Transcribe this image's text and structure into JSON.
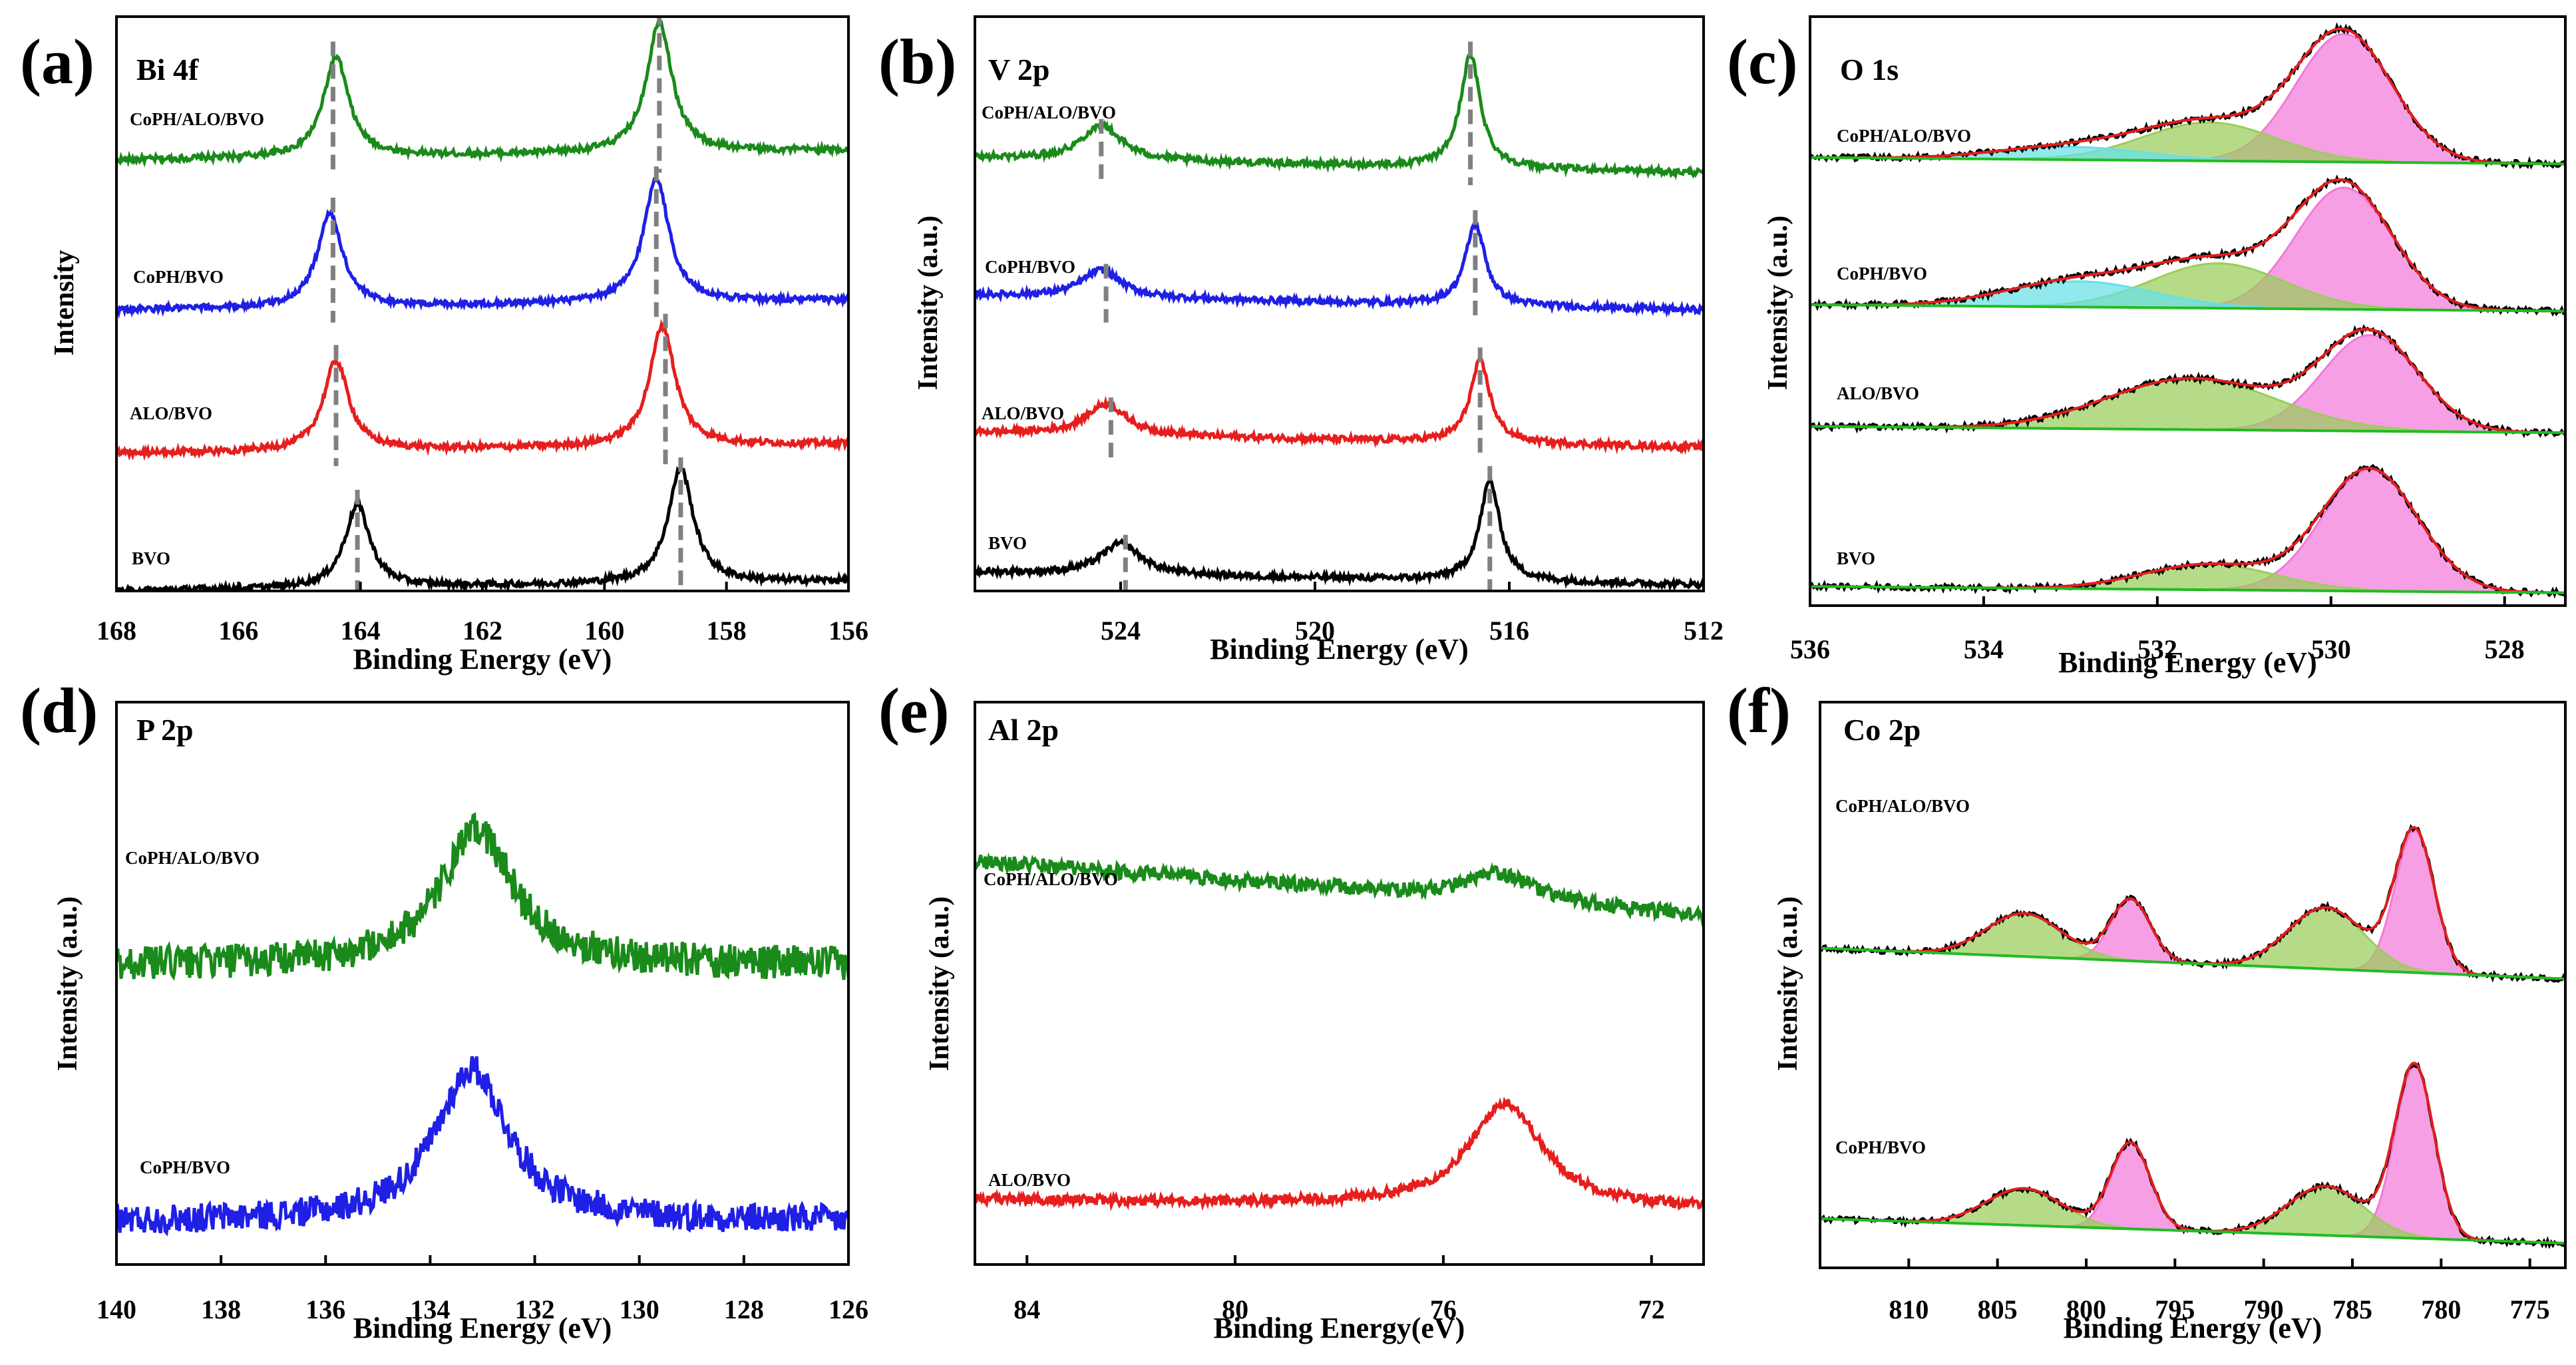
{
  "figure": {
    "panels": [
      {
        "id": "a",
        "label": "(a)",
        "element": "Bi 4f",
        "xlabel": "Binding Energy (eV)",
        "ylabel": "Intensity",
        "xticks": [
          "168",
          "166",
          "164",
          "162",
          "160",
          "158",
          "156"
        ],
        "samples": [
          "CoPH/ALO/BVO",
          "CoPH/BVO",
          "ALO/BVO",
          "BVO"
        ]
      },
      {
        "id": "b",
        "label": "(b)",
        "element": "V 2p",
        "xlabel": "Binding Energy (eV)",
        "ylabel": "Intensity (a.u.)",
        "xticks": [
          "524",
          "520",
          "516",
          "512"
        ],
        "samples": [
          "CoPH/ALO/BVO",
          "CoPH/BVO",
          "ALO/BVO",
          "BVO"
        ]
      },
      {
        "id": "c",
        "label": "(c)",
        "element": "O 1s",
        "xlabel": "Binding Energy (eV)",
        "ylabel": "Intensity (a.u.)",
        "xticks": [
          "536",
          "534",
          "532",
          "530",
          "528"
        ],
        "samples": [
          "CoPH/ALO/BVO",
          "CoPH/BVO",
          "ALO/BVO",
          "BVO"
        ]
      },
      {
        "id": "d",
        "label": "(d)",
        "element": "P 2p",
        "xlabel": "Binding Energy (eV)",
        "ylabel": "Intensity (a.u.)",
        "xticks": [
          "140",
          "138",
          "136",
          "134",
          "132",
          "130",
          "128",
          "126"
        ],
        "samples": [
          "CoPH/ALO/BVO",
          "CoPH/BVO"
        ]
      },
      {
        "id": "e",
        "label": "(e)",
        "element": "Al 2p",
        "xlabel": "Binding Energy(eV)",
        "ylabel": "Intensity (a.u.)",
        "xticks": [
          "84",
          "80",
          "76",
          "72"
        ],
        "samples": [
          "CoPH/ALO/BVO",
          "ALO/BVO"
        ]
      },
      {
        "id": "f",
        "label": "(f)",
        "element": "Co 2p",
        "xlabel": "Binding Energy (eV)",
        "ylabel": "Intensity (a.u.)",
        "xticks": [
          "810",
          "805",
          "800",
          "795",
          "790",
          "785",
          "780",
          "775"
        ],
        "samples": [
          "CoPH/ALO/BVO",
          "CoPH/BVO"
        ]
      }
    ]
  },
  "chart_data": [
    {
      "type": "line",
      "title": "Bi 4f",
      "xlabel": "Binding Energy (eV)",
      "ylabel": "Intensity",
      "xlim": [
        168,
        156
      ],
      "xreversed": true,
      "ylim": [
        0,
        4.6
      ],
      "series": [
        {
          "name": "CoPH/ALO/BVO",
          "color": "#1a8a1a",
          "offset": 3.45,
          "baseline": [
            0.0,
            0.08
          ],
          "peaks": [
            [
              164.4,
              0.8,
              0.5
            ],
            [
              159.1,
              1.05,
              0.5
            ]
          ]
        },
        {
          "name": "CoPH/BVO",
          "color": "#1f1fe6",
          "offset": 2.25,
          "baseline": [
            0.0,
            0.08
          ],
          "peaks": [
            [
              164.5,
              0.75,
              0.5
            ],
            [
              159.15,
              1.0,
              0.5
            ]
          ]
        },
        {
          "name": "ALO/BVO",
          "color": "#e61e1e",
          "offset": 1.1,
          "baseline": [
            0.0,
            0.08
          ],
          "peaks": [
            [
              164.4,
              0.72,
              0.5
            ],
            [
              159.05,
              0.97,
              0.5
            ]
          ]
        },
        {
          "name": "BVO",
          "color": "#000000",
          "offset": 0.0,
          "baseline": [
            0.0,
            0.08
          ],
          "peaks": [
            [
              164.05,
              0.66,
              0.5
            ],
            [
              158.75,
              0.92,
              0.5
            ]
          ]
        }
      ],
      "reference_lines": [
        164.45,
        164.45,
        164.4,
        164.05,
        159.1,
        159.15,
        159.0,
        158.75
      ]
    },
    {
      "type": "line",
      "title": "V 2p",
      "xlabel": "Binding Energy (eV)",
      "ylabel": "Intensity (a.u.)",
      "xlim": [
        527,
        512
      ],
      "xreversed": true,
      "ylim": [
        0,
        4.6
      ],
      "series": [
        {
          "name": "CoPH/ALO/BVO",
          "color": "#1a8a1a",
          "offset": 3.35,
          "baseline": [
            0.12,
            0.0
          ],
          "peaks": [
            [
              524.4,
              0.28,
              1.0
            ],
            [
              516.8,
              0.9,
              0.5
            ]
          ]
        },
        {
          "name": "CoPH/BVO",
          "color": "#1f1fe6",
          "offset": 2.25,
          "baseline": [
            0.12,
            0.0
          ],
          "peaks": [
            [
              524.4,
              0.22,
              1.0
            ],
            [
              516.7,
              0.65,
              0.5
            ]
          ]
        },
        {
          "name": "ALO/BVO",
          "color": "#e61e1e",
          "offset": 1.15,
          "baseline": [
            0.12,
            0.0
          ],
          "peaks": [
            [
              524.3,
              0.25,
              1.0
            ],
            [
              516.6,
              0.65,
              0.5
            ]
          ]
        },
        {
          "name": "BVO",
          "color": "#000000",
          "offset": 0.05,
          "baseline": [
            0.1,
            0.0
          ],
          "peaks": [
            [
              524.0,
              0.25,
              1.0
            ],
            [
              516.4,
              0.8,
              0.5
            ]
          ]
        }
      ],
      "reference_lines": [
        524.4,
        524.3,
        524.2,
        523.9,
        516.8,
        516.7,
        516.6,
        516.4
      ]
    },
    {
      "type": "area",
      "title": "O 1s",
      "xlabel": "Binding Energy (eV)",
      "ylabel": "Intensity (a.u.)",
      "xlim": [
        536,
        527.3
      ],
      "xreversed": true,
      "ylim": [
        0,
        4.6
      ],
      "series": [
        {
          "name": "CoPH/ALO/BVO",
          "offset": 3.45,
          "tilt": 0.1,
          "components": [
            {
              "center": 529.85,
              "height": 1.0,
              "fwhm": 1.3,
              "color": "#f27ad9"
            },
            {
              "center": 531.4,
              "height": 0.3,
              "fwhm": 1.8,
              "color": "#9acd5a"
            },
            {
              "center": 533.0,
              "height": 0.1,
              "fwhm": 2.0,
              "color": "#66e0e6"
            }
          ]
        },
        {
          "name": "CoPH/BVO",
          "offset": 2.3,
          "tilt": 0.1,
          "components": [
            {
              "center": 529.85,
              "height": 0.95,
              "fwhm": 1.3,
              "color": "#f27ad9"
            },
            {
              "center": 531.3,
              "height": 0.35,
              "fwhm": 1.8,
              "color": "#9acd5a"
            },
            {
              "center": 532.9,
              "height": 0.2,
              "fwhm": 2.0,
              "color": "#66e0e6"
            }
          ]
        },
        {
          "name": "ALO/BVO",
          "offset": 1.35,
          "tilt": 0.1,
          "components": [
            {
              "center": 529.55,
              "height": 0.75,
              "fwhm": 1.3,
              "color": "#f27ad9"
            },
            {
              "center": 531.6,
              "height": 0.4,
              "fwhm": 2.3,
              "color": "#9acd5a"
            }
          ]
        },
        {
          "name": "BVO",
          "offset": 0.1,
          "tilt": 0.1,
          "components": [
            {
              "center": 529.55,
              "height": 0.95,
              "fwhm": 1.3,
              "color": "#f27ad9"
            },
            {
              "center": 531.4,
              "height": 0.2,
              "fwhm": 1.8,
              "color": "#9acd5a"
            }
          ]
        }
      ]
    },
    {
      "type": "line",
      "title": "P 2p",
      "xlabel": "Binding Energy (eV)",
      "ylabel": "Intensity (a.u.)",
      "xlim": [
        140,
        126
      ],
      "xreversed": true,
      "ylim": [
        0,
        4.6
      ],
      "series": [
        {
          "name": "CoPH/ALO/BVO",
          "color": "#1a8a1a",
          "offset": 2.45,
          "noise": 0.14,
          "peaks": [
            [
              133.1,
              1.1,
              1.7
            ]
          ]
        },
        {
          "name": "CoPH/BVO",
          "color": "#1f1fe6",
          "offset": 0.35,
          "noise": 0.12,
          "peaks": [
            [
              133.2,
              1.25,
              1.7
            ]
          ]
        }
      ]
    },
    {
      "type": "line",
      "title": "Al 2p",
      "xlabel": "Binding Energy(eV)",
      "ylabel": "Intensity (a.u.)",
      "xlim": [
        85,
        71
      ],
      "xreversed": true,
      "ylim": [
        0,
        4.6
      ],
      "series": [
        {
          "name": "CoPH/ALO/BVO",
          "color": "#1a8a1a",
          "offset": 2.85,
          "noise": 0.06,
          "baseline": [
            0.45,
            0.0
          ],
          "peaks": [
            [
              74.9,
              0.22,
              1.6
            ]
          ]
        },
        {
          "name": "ALO/BVO",
          "color": "#e61e1e",
          "offset": 0.45,
          "noise": 0.04,
          "baseline": [
            0.08,
            0.0
          ],
          "peaks": [
            [
              74.8,
              0.85,
              1.7
            ]
          ]
        }
      ]
    },
    {
      "type": "area",
      "title": "Co 2p",
      "xlabel": "Binding Energy (eV)",
      "ylabel": "Intensity (a.u.)",
      "xlim": [
        815,
        773
      ],
      "xreversed": true,
      "ylim": [
        0,
        4.6
      ],
      "series": [
        {
          "name": "CoPH/ALO/BVO",
          "offset": 2.35,
          "tilt": 0.5,
          "components": [
            {
              "center": 781.5,
              "height": 1.15,
              "fwhm": 2.6,
              "color": "#f27ad9"
            },
            {
              "center": 786.5,
              "height": 0.5,
              "fwhm": 5.0,
              "color": "#9acd5a"
            },
            {
              "center": 797.5,
              "height": 0.5,
              "fwhm": 2.6,
              "color": "#f27ad9"
            },
            {
              "center": 803.5,
              "height": 0.35,
              "fwhm": 5.0,
              "color": "#9acd5a"
            }
          ]
        },
        {
          "name": "CoPH/BVO",
          "offset": 0.2,
          "tilt": 0.4,
          "components": [
            {
              "center": 781.5,
              "height": 1.4,
              "fwhm": 2.6,
              "color": "#f27ad9"
            },
            {
              "center": 786.5,
              "height": 0.4,
              "fwhm": 5.0,
              "color": "#9acd5a"
            },
            {
              "center": 797.5,
              "height": 0.7,
              "fwhm": 2.6,
              "color": "#f27ad9"
            },
            {
              "center": 803.5,
              "height": 0.3,
              "fwhm": 5.0,
              "color": "#9acd5a"
            }
          ]
        }
      ]
    }
  ]
}
